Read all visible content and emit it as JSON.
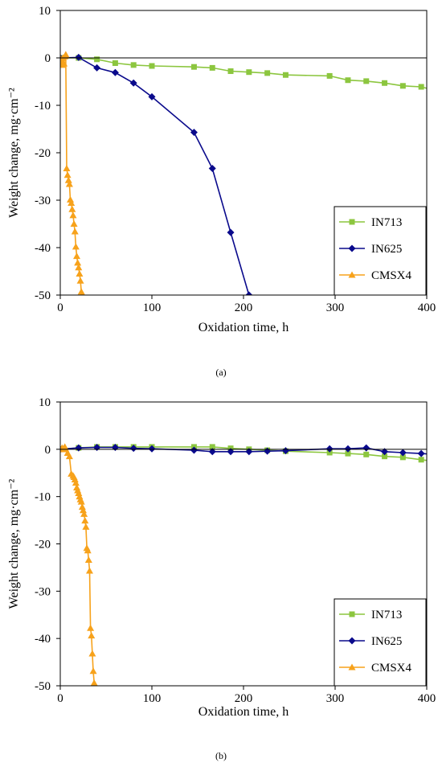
{
  "chart_data": [
    {
      "type": "line",
      "panel_label": "(a)",
      "xlabel": "Oxidation time, h",
      "ylabel": "Weight change, mg·cm⁻²",
      "xlim": [
        0,
        400
      ],
      "ylim": [
        -50,
        10
      ],
      "xticks": [
        0,
        100,
        200,
        300,
        400
      ],
      "yticks": [
        10,
        0,
        -10,
        -20,
        -30,
        -40,
        -50
      ],
      "grid": false,
      "legend_position": "bottom-right",
      "series": [
        {
          "name": "IN713",
          "color": "#8cc63f",
          "marker": "square",
          "x": [
            0,
            20,
            40,
            60,
            80,
            100,
            146,
            166,
            186,
            206,
            226,
            246,
            294,
            314,
            334,
            354,
            374,
            394,
            402
          ],
          "y": [
            0,
            0,
            -0.3,
            -1.1,
            -1.5,
            -1.7,
            -1.9,
            -2.1,
            -2.8,
            -3.0,
            -3.2,
            -3.6,
            -3.8,
            -4.7,
            -4.9,
            -5.3,
            -5.9,
            -6.1,
            -6.5
          ]
        },
        {
          "name": "IN625",
          "color": "#0a0a8c",
          "marker": "diamond",
          "x": [
            0,
            20,
            40,
            60,
            80,
            100,
            146,
            166,
            186,
            206
          ],
          "y": [
            0,
            0.1,
            -2.1,
            -3.1,
            -5.3,
            -8.2,
            -15.7,
            -23.3,
            -36.8,
            -50.0
          ]
        },
        {
          "name": "CMSX4",
          "color": "#f7a21b",
          "marker": "triangle",
          "x": [
            0,
            1,
            2,
            3,
            4,
            5,
            6,
            7,
            8,
            9,
            10,
            11,
            12,
            13,
            14,
            15,
            16,
            17,
            18,
            19,
            20,
            21,
            22,
            23,
            24
          ],
          "y": [
            0,
            -0.8,
            -1.5,
            0,
            -1.2,
            0.3,
            0.7,
            -23.3,
            -24.7,
            -25.8,
            -26.6,
            -29.9,
            -30.6,
            -31.9,
            -33.2,
            -35.0,
            -36.6,
            -39.8,
            -41.8,
            -43.2,
            -44.2,
            -45.5,
            -47.0,
            -49.3,
            -50.0
          ]
        }
      ]
    },
    {
      "type": "line",
      "panel_label": "(b)",
      "xlabel": "Oxidation time, h",
      "ylabel": "Weight change, mg·cm⁻²",
      "xlim": [
        0,
        400
      ],
      "ylim": [
        -50,
        10
      ],
      "xticks": [
        0,
        100,
        200,
        300,
        400
      ],
      "yticks": [
        10,
        0,
        -10,
        -20,
        -30,
        -40,
        -50
      ],
      "grid": false,
      "legend_position": "bottom-right",
      "series": [
        {
          "name": "IN713",
          "color": "#8cc63f",
          "marker": "square",
          "x": [
            0,
            20,
            40,
            60,
            80,
            100,
            146,
            166,
            186,
            206,
            226,
            246,
            294,
            314,
            334,
            354,
            374,
            394,
            402
          ],
          "y": [
            0,
            0.3,
            0.5,
            0.5,
            0.5,
            0.5,
            0.5,
            0.5,
            0.2,
            0,
            -0.2,
            -0.4,
            -0.7,
            -0.9,
            -1.1,
            -1.5,
            -1.7,
            -2.2,
            -2.4
          ]
        },
        {
          "name": "IN625",
          "color": "#0a0a8c",
          "marker": "diamond",
          "x": [
            0,
            20,
            40,
            60,
            80,
            100,
            146,
            166,
            186,
            206,
            226,
            246,
            294,
            314,
            334,
            354,
            374,
            394,
            402
          ],
          "y": [
            0,
            0.3,
            0.4,
            0.4,
            0.2,
            0.1,
            -0.2,
            -0.5,
            -0.5,
            -0.5,
            -0.4,
            -0.3,
            0.1,
            0.1,
            0.3,
            -0.5,
            -0.7,
            -0.9,
            -1.0
          ]
        },
        {
          "name": "CMSX4",
          "color": "#f7a21b",
          "marker": "triangle",
          "x": [
            0,
            2,
            3,
            4,
            5,
            6,
            8,
            10,
            12,
            14,
            15,
            16,
            17,
            18,
            19,
            20,
            21,
            22,
            23,
            24,
            25,
            26,
            27,
            28,
            29,
            30,
            31,
            32,
            33,
            34,
            35,
            36,
            37,
            38
          ],
          "y": [
            0,
            0.3,
            0,
            0.2,
            0.5,
            0,
            -0.8,
            -1.5,
            -5.2,
            -5.6,
            -5.9,
            -6.4,
            -7.1,
            -8.1,
            -8.7,
            -9.3,
            -10.0,
            -10.6,
            -11.1,
            -12.2,
            -12.9,
            -13.7,
            -15.1,
            -16.4,
            -20.9,
            -21.4,
            -23.4,
            -25.7,
            -37.8,
            -39.4,
            -43.2,
            -46.9,
            -49.4,
            -50.0
          ]
        }
      ]
    }
  ]
}
